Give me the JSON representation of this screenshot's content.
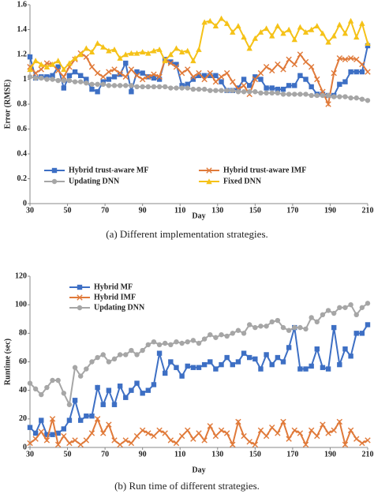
{
  "chart_data": [
    {
      "type": "line",
      "ylabel": "Error (RMSE)",
      "xlabel": "Day",
      "caption": "(a) Different implementation strategies.",
      "xlim": [
        30,
        210
      ],
      "xticks": [
        30,
        50,
        70,
        90,
        110,
        130,
        150,
        170,
        190,
        210
      ],
      "ylim": [
        0,
        1.6
      ],
      "yticks": [
        0,
        0.2,
        0.4,
        0.6,
        0.8,
        1,
        1.2,
        1.4,
        1.6
      ],
      "grid": false,
      "legend": "bottom",
      "x": [
        30,
        33,
        36,
        39,
        42,
        45,
        48,
        51,
        54,
        57,
        60,
        63,
        66,
        69,
        72,
        75,
        78,
        81,
        84,
        87,
        90,
        93,
        96,
        99,
        102,
        105,
        108,
        111,
        114,
        117,
        120,
        123,
        126,
        129,
        132,
        135,
        138,
        141,
        144,
        147,
        150,
        153,
        156,
        159,
        162,
        165,
        168,
        171,
        174,
        177,
        180,
        183,
        186,
        189,
        192,
        195,
        198,
        201,
        204,
        207,
        210
      ],
      "series": [
        {
          "name": "Hybrid trust-aware MF",
          "color": "#3d6fc4",
          "marker": "square",
          "values": [
            1.18,
            1.01,
            1.02,
            1.02,
            1.03,
            1.1,
            0.93,
            1.03,
            1.06,
            1.03,
            1.0,
            0.92,
            0.9,
            0.98,
            1.0,
            1.02,
            1.04,
            1.13,
            0.9,
            1.06,
            1.05,
            1.02,
            1.01,
            1.0,
            1.16,
            1.14,
            1.12,
            0.95,
            0.96,
            1.0,
            1.03,
            1.03,
            1.03,
            1.03,
            0.98,
            0.91,
            0.91,
            0.93,
            1.0,
            0.95,
            1.02,
            1.0,
            0.93,
            0.93,
            0.92,
            0.92,
            0.95,
            0.95,
            1.03,
            1.0,
            0.94,
            0.88,
            0.88,
            0.87,
            0.87,
            0.96,
            0.98,
            1.06,
            1.06,
            1.06,
            1.27
          ]
        },
        {
          "name": "Hybrid trust-aware IMF",
          "color": "#e07a3a",
          "marker": "x",
          "values": [
            1.1,
            1.05,
            1.08,
            1.13,
            1.12,
            1.07,
            1.02,
            1.1,
            1.16,
            1.21,
            1.18,
            1.1,
            1.05,
            1.02,
            1.06,
            1.08,
            1.05,
            1.02,
            1.08,
            1.03,
            1.0,
            1.02,
            1.04,
            1.02,
            1.16,
            1.13,
            1.1,
            1.05,
            1.08,
            1.02,
            1.05,
            1.0,
            1.05,
            0.98,
            1.02,
            1.05,
            0.98,
            0.92,
            0.95,
            0.88,
            1.0,
            1.05,
            1.1,
            1.07,
            1.12,
            1.08,
            1.16,
            1.12,
            1.2,
            1.14,
            1.1,
            1.0,
            0.9,
            0.8,
            1.05,
            1.17,
            1.16,
            1.17,
            1.16,
            1.12,
            1.06
          ]
        },
        {
          "name": "Updating DNN",
          "color": "#a6a6a6",
          "marker": "circle",
          "values": [
            1.02,
            1.01,
            1.01,
            1.0,
            1.0,
            0.99,
            0.99,
            0.99,
            0.98,
            0.98,
            0.97,
            0.96,
            0.96,
            0.96,
            0.95,
            0.95,
            0.95,
            0.95,
            0.95,
            0.94,
            0.94,
            0.94,
            0.94,
            0.94,
            0.94,
            0.93,
            0.93,
            0.93,
            0.93,
            0.92,
            0.92,
            0.92,
            0.91,
            0.91,
            0.91,
            0.91,
            0.91,
            0.9,
            0.9,
            0.9,
            0.9,
            0.89,
            0.89,
            0.89,
            0.89,
            0.88,
            0.88,
            0.88,
            0.88,
            0.88,
            0.87,
            0.87,
            0.87,
            0.87,
            0.86,
            0.86,
            0.86,
            0.85,
            0.85,
            0.84,
            0.83
          ]
        },
        {
          "name": "Fixed DNN",
          "color": "#f5c218",
          "marker": "triangle",
          "values": [
            1.08,
            1.15,
            1.12,
            1.1,
            1.12,
            1.15,
            1.08,
            1.13,
            1.17,
            1.2,
            1.25,
            1.22,
            1.29,
            1.26,
            1.23,
            1.24,
            1.17,
            1.2,
            1.21,
            1.21,
            1.22,
            1.21,
            1.23,
            1.24,
            1.15,
            1.2,
            1.25,
            1.22,
            1.23,
            1.15,
            1.24,
            1.46,
            1.47,
            1.43,
            1.49,
            1.45,
            1.38,
            1.43,
            1.34,
            1.25,
            1.33,
            1.38,
            1.41,
            1.35,
            1.43,
            1.37,
            1.4,
            1.32,
            1.42,
            1.38,
            1.4,
            1.43,
            1.37,
            1.3,
            1.35,
            1.44,
            1.37,
            1.47,
            1.34,
            1.45,
            1.29
          ]
        }
      ]
    },
    {
      "type": "line",
      "ylabel": "Runtime (sec)",
      "xlabel": "Day",
      "caption": "(b) Run time of different strategies.",
      "xlim": [
        30,
        210
      ],
      "xticks": [
        30,
        50,
        70,
        90,
        110,
        130,
        150,
        170,
        190,
        210
      ],
      "ylim": [
        0,
        120
      ],
      "yticks": [
        0,
        20,
        40,
        60,
        80,
        100,
        120
      ],
      "grid": false,
      "legend": "upper left",
      "x": [
        30,
        33,
        36,
        39,
        42,
        45,
        48,
        51,
        54,
        57,
        60,
        63,
        66,
        69,
        72,
        75,
        78,
        81,
        84,
        87,
        90,
        93,
        96,
        99,
        102,
        105,
        108,
        111,
        114,
        117,
        120,
        123,
        126,
        129,
        132,
        135,
        138,
        141,
        144,
        147,
        150,
        153,
        156,
        159,
        162,
        165,
        168,
        171,
        174,
        177,
        180,
        183,
        186,
        189,
        192,
        195,
        198,
        201,
        204,
        207,
        210
      ],
      "series": [
        {
          "name": "Hybrid MF",
          "color": "#3d6fc4",
          "marker": "square",
          "values": [
            14,
            10,
            19,
            9,
            9,
            10,
            13,
            19,
            33,
            19,
            22,
            22,
            42,
            30,
            40,
            30,
            43,
            35,
            40,
            45,
            38,
            40,
            44,
            66,
            52,
            60,
            56,
            50,
            57,
            56,
            56,
            58,
            60,
            55,
            58,
            63,
            58,
            60,
            66,
            63,
            62,
            55,
            65,
            58,
            63,
            60,
            70,
            84,
            55,
            55,
            57,
            69,
            56,
            55,
            84,
            58,
            69,
            64,
            80,
            80,
            86
          ]
        },
        {
          "name": "Hybrid IMF",
          "color": "#e07a3a",
          "marker": "x",
          "values": [
            3,
            6,
            11,
            5,
            20,
            2,
            8,
            3,
            5,
            2,
            5,
            10,
            20,
            10,
            16,
            5,
            2,
            5,
            3,
            8,
            12,
            10,
            8,
            12,
            10,
            5,
            3,
            8,
            12,
            6,
            10,
            5,
            15,
            8,
            12,
            10,
            2,
            18,
            8,
            4,
            2,
            12,
            8,
            14,
            10,
            18,
            6,
            12,
            10,
            2,
            12,
            8,
            16,
            10,
            12,
            18,
            2,
            12,
            6,
            3,
            5
          ]
        },
        {
          "name": "Updating DNN",
          "color": "#a6a6a6",
          "marker": "circle",
          "values": [
            45,
            41,
            37,
            42,
            47,
            47,
            38,
            30,
            56,
            50,
            55,
            60,
            63,
            65,
            60,
            62,
            65,
            65,
            68,
            65,
            68,
            72,
            74,
            72,
            73,
            72,
            74,
            73,
            74,
            75,
            73,
            76,
            79,
            77,
            79,
            78,
            80,
            82,
            80,
            86,
            84,
            85,
            85,
            88,
            89,
            84,
            82,
            84,
            84,
            83,
            91,
            88,
            93,
            96,
            94,
            98,
            98,
            100,
            93,
            98,
            101
          ]
        }
      ]
    }
  ]
}
